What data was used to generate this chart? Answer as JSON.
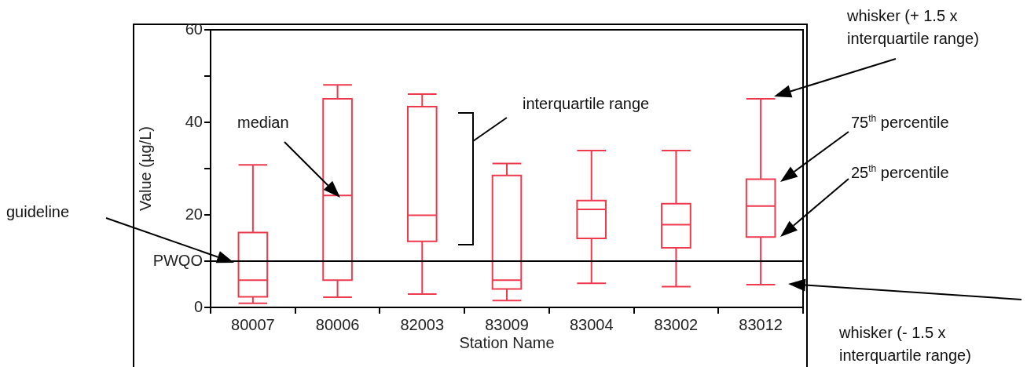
{
  "chart_data": {
    "type": "box",
    "xlabel": "Station Name",
    "ylabel": "Value (µg/L)",
    "categories": [
      "80007",
      "80006",
      "82003",
      "83009",
      "83004",
      "83002",
      "83012"
    ],
    "series": [
      {
        "color": "#ee3a4f",
        "boxes": [
          {
            "low": 0.9,
            "q1": 2.3,
            "median": 5.9,
            "q3": 16.2,
            "high": 30.8
          },
          {
            "low": 2.2,
            "q1": 5.9,
            "median": 24.2,
            "q3": 45.1,
            "high": 48.1
          },
          {
            "low": 2.9,
            "q1": 14.3,
            "median": 19.9,
            "q3": 43.4,
            "high": 46.1
          },
          {
            "low": 1.5,
            "q1": 4.0,
            "median": 5.9,
            "q3": 28.5,
            "high": 31.1
          },
          {
            "low": 5.2,
            "q1": 14.9,
            "median": 21.2,
            "q3": 23.1,
            "high": 33.9
          },
          {
            "low": 4.5,
            "q1": 12.9,
            "median": 17.9,
            "q3": 22.4,
            "high": 33.9
          },
          {
            "low": 4.9,
            "q1": 15.2,
            "median": 21.9,
            "q3": 27.7,
            "high": 45.1
          }
        ]
      }
    ],
    "ylim": [
      0,
      60
    ],
    "yticks": [
      0,
      {
        "value": 10,
        "label": "PWQO"
      },
      20,
      {
        "value": 30,
        "label": null
      },
      40,
      {
        "value": 50,
        "label": null
      },
      60
    ],
    "ref_lines": [
      {
        "axis": "y",
        "value": 10,
        "color": "#000000"
      }
    ],
    "grid": false,
    "legend": false,
    "annotations": [
      "guideline",
      "median",
      "interquartile range",
      "whisker (+ 1.5 x interquartile range)",
      "75$^{th}$ percentile",
      "25$^{th}$ percentile",
      "whisker (- 1.5 x interquartile range)"
    ]
  }
}
